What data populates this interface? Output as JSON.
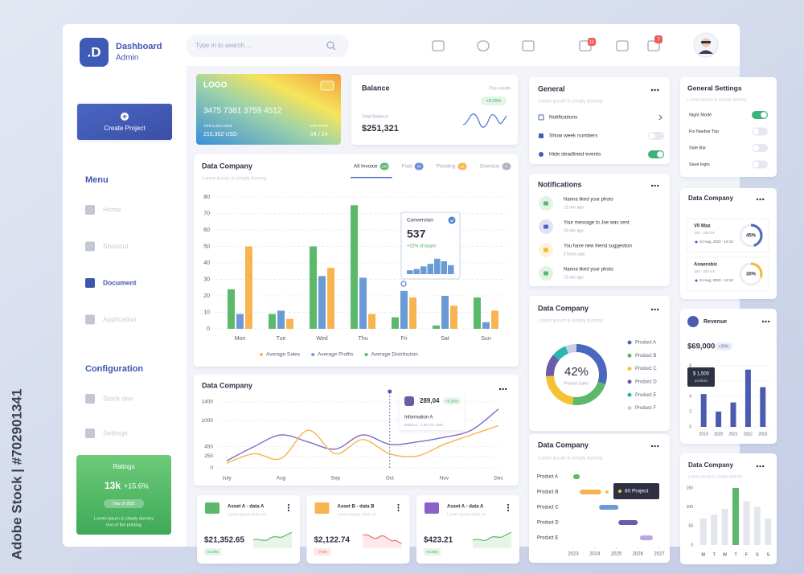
{
  "watermark": "Adobe Stock | #702901341",
  "header": {
    "logo": ".D",
    "title": "Dashboard",
    "subtitle": "Admin",
    "search": "Type in to search ...",
    "badges": [
      "11",
      "7"
    ]
  },
  "sidebar": {
    "button": "Create Project",
    "menu_title": "Menu",
    "menu": [
      {
        "label": "Home",
        "active": false
      },
      {
        "label": "Shortcut",
        "active": false
      },
      {
        "label": "Document",
        "active": true
      },
      {
        "label": "Application",
        "active": false
      }
    ],
    "config_title": "Configuration",
    "config": [
      {
        "label": "Stack dev",
        "active": false
      },
      {
        "label": "Settings",
        "active": false
      }
    ]
  },
  "ratings": {
    "title": "Ratings",
    "value": "13k",
    "change": "+15.6%",
    "pill": "Year of 2021",
    "text": [
      "Lorem ipsum is simply dummy",
      "text of the printing"
    ]
  },
  "card": {
    "logo": "LOGO",
    "number": "3475 7381 3759 4512",
    "balance_label": "TOTAL BALANCE",
    "balance": "215,352 USD",
    "exp_label": "EXP DATE",
    "exp": "04 / 24"
  },
  "balance": {
    "title": "Balance",
    "period": "This month",
    "change": "+0.25%",
    "label": "Total Balance",
    "value": "$251,321"
  },
  "general": {
    "title": "General",
    "subtitle": "Lorem ipsum is simply dummy",
    "items": [
      {
        "label": "Notifications"
      },
      {
        "label": "Show week numbers",
        "on": false
      },
      {
        "label": "Hide deadlined events",
        "on": true
      }
    ]
  },
  "notifications": {
    "title": "Notifications",
    "items": [
      {
        "text": "Nanna liked your photo",
        "time": "12 min ago"
      },
      {
        "text": "Your message to Joe was sent",
        "time": "29 min ago"
      },
      {
        "text": "You have new friend suggestion",
        "time": "2 hours ago"
      },
      {
        "text": "Nanna liked your photo",
        "time": "12 min ago"
      }
    ]
  },
  "settings": {
    "title": "General Settings",
    "subtitle": "Lorem ipsum is simply dummy",
    "items": [
      {
        "label": "Night Mode",
        "on": true
      },
      {
        "label": "Fix Navbar Top",
        "on": false
      },
      {
        "label": "Side Bar",
        "on": false
      },
      {
        "label": "Save login",
        "on": false
      }
    ]
  },
  "metrics": {
    "title": "Data Company",
    "items": [
      {
        "name": "V0 Max",
        "range": "160 - 200 km",
        "date": "24 Aug, 2023 - 12:10",
        "value": 45,
        "value_label": "45%",
        "color": "#4a69bd"
      },
      {
        "name": "Anaerobic",
        "range": "160 - 200 km",
        "date": "24 Aug, 2023 - 12:10",
        "value": 30,
        "value_label": "30%",
        "color": "#f5b731"
      }
    ]
  },
  "assets": [
    {
      "title": "Asset A - data A",
      "subtitle": "Lorem ipsum dolor sit",
      "value": "$21,352.65",
      "change": "+0.25%",
      "color": "#5cb96b"
    },
    {
      "title": "Asset B - data B",
      "subtitle": "Lorem ipsum dolor sit",
      "value": "$2,122.74",
      "change": "-7.5%",
      "color": "#ef6b6b"
    },
    {
      "title": "Asset A - data A",
      "subtitle": "Lorem ipsum dolor sit",
      "value": "$423.21",
      "change": "+0.25%",
      "color": "#5cb96b"
    }
  ],
  "chart_data": [
    {
      "type": "bar",
      "title": "Data Company",
      "subtitle": "Lorem ipsum is simply dummy",
      "tabs": [
        {
          "label": "All Invoice",
          "count": "100",
          "color": "#5cb96b"
        },
        {
          "label": "Paid",
          "count": "40",
          "color": "#6b8fd6"
        },
        {
          "label": "Pending",
          "count": "12",
          "color": "#f9b452"
        },
        {
          "label": "Overdue",
          "count": "0",
          "color": "#b0b4c4"
        }
      ],
      "categories": [
        "Mon",
        "Tue",
        "Wed",
        "Thu",
        "Fri",
        "Sat",
        "Sun"
      ],
      "series": [
        {
          "name": "Average Sales",
          "color": "#f9b452",
          "values": [
            50,
            6,
            37,
            9,
            19,
            14,
            11
          ]
        },
        {
          "name": "Average Profits",
          "color": "#6b9bd6",
          "values": [
            9,
            11,
            32,
            31,
            23,
            20,
            4
          ]
        },
        {
          "name": "Average Distribution",
          "color": "#5cb96b",
          "values": [
            24,
            9,
            50,
            75,
            7,
            2,
            19
          ]
        }
      ],
      "ylim": [
        0,
        80
      ],
      "yticks": [
        0,
        10,
        20,
        30,
        40,
        50,
        60,
        70,
        80
      ],
      "grid": true,
      "annotation": {
        "title": "Conversion",
        "value": "537",
        "note": "+22% of target"
      }
    },
    {
      "type": "line",
      "title": "Data Company",
      "categories": [
        "July",
        null,
        "Aug",
        null,
        "Sep",
        null,
        "Oct",
        null,
        "Nov",
        null,
        "Dec"
      ],
      "series": [
        {
          "color": "#7b6fc4",
          "values": [
            150,
            450,
            700,
            550,
            400,
            700,
            500,
            550,
            650,
            800,
            1250
          ]
        },
        {
          "color": "#f9b452",
          "values": [
            100,
            300,
            200,
            800,
            300,
            600,
            300,
            250,
            500,
            700,
            900
          ]
        }
      ],
      "ylim": [
        0,
        1400
      ],
      "yticks": [
        0,
        250,
        450,
        1000,
        1400
      ],
      "grid": true,
      "annotation": {
        "value": "289,04",
        "change": "+0.25%",
        "title": "Information A",
        "note": "Balance : 1,617.01 USD"
      }
    },
    {
      "type": "pie",
      "title": "Data Company",
      "subtitle": "Lorem ipsum is simply dummy",
      "center_value": "42%",
      "center_label": "Product Sales",
      "categories": [
        "Product A",
        "Product B",
        "Product C",
        "Product D",
        "Product E",
        "Product F"
      ],
      "values": [
        30,
        22,
        22,
        12,
        8,
        6
      ],
      "colors": [
        "#4a69bd",
        "#5cb96b",
        "#f5c232",
        "#6c5ba7",
        "#29b5b0",
        "#c9cde8"
      ]
    },
    {
      "type": "gantt",
      "title": "Data Company",
      "subtitle": "Lorem ipsum is simply dummy",
      "categories": [
        "Product A",
        "Product B",
        "Product C",
        "Product D",
        "Product E"
      ],
      "starts": [
        2023,
        2023.3,
        2024.2,
        2025.1,
        2026.1
      ],
      "ends": [
        2023.3,
        2024.3,
        2025.1,
        2026,
        2026.7
      ],
      "colors": [
        "#5cb96b",
        "#f9b452",
        "#6b9bd6",
        "#6c5ba7",
        "#b9a6e0"
      ],
      "xlim": [
        2023,
        2027
      ],
      "xticks": [
        2023,
        2024,
        2025,
        2026,
        2027
      ],
      "annotation": {
        "label": "80 Project"
      }
    },
    {
      "type": "bar",
      "title": "Revenue",
      "value": "$69,000",
      "change": "+20%",
      "categories": [
        "2019",
        "2020",
        "2021",
        "2022",
        "2023"
      ],
      "values": [
        4.3,
        2,
        3.2,
        7.5,
        5.2
      ],
      "color": "#4a5bb0",
      "ylim": [
        0,
        8
      ],
      "yticks": [
        0,
        2,
        4,
        6,
        8
      ],
      "grid": true,
      "annotation": {
        "value": "$ 1,500",
        "label": "portfolio"
      }
    },
    {
      "type": "bar",
      "title": "Data Company",
      "categories": [
        "M",
        "T",
        "W",
        "T",
        "F",
        "S",
        "S"
      ],
      "values": [
        70,
        80,
        95,
        150,
        115,
        100,
        70
      ],
      "color": "#e4e6ee",
      "highlight_color": "#5cb96b",
      "highlight": 3,
      "ylim": [
        0,
        150
      ],
      "yticks": [
        0,
        50,
        100,
        150
      ]
    }
  ]
}
